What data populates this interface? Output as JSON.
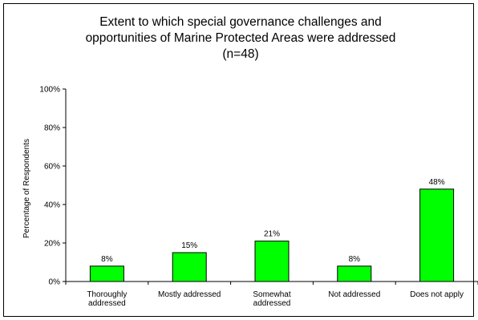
{
  "chart_data": {
    "type": "bar",
    "title_lines": [
      "Extent to which special governance challenges and",
      "opportunities of Marine Protected Areas were addressed",
      "(n=48)"
    ],
    "xlabel": "",
    "ylabel": "Percentage of Respondents",
    "categories": [
      [
        "Thoroughly",
        "addressed"
      ],
      [
        "Mostly addressed"
      ],
      [
        "Somewhat",
        "addressed"
      ],
      [
        "Not addressed"
      ],
      [
        "Does not apply"
      ]
    ],
    "values": [
      8,
      15,
      21,
      8,
      48
    ],
    "data_labels": [
      "8%",
      "15%",
      "21%",
      "8%",
      "48%"
    ],
    "ylim": [
      0,
      100
    ],
    "yticks": [
      0,
      20,
      40,
      60,
      80,
      100
    ],
    "ytick_labels": [
      "0%",
      "20%",
      "40%",
      "60%",
      "80%",
      "100%"
    ],
    "grid": false,
    "legend": "none",
    "colors": {
      "bar_fill": "#00ff00",
      "bar_stroke": "#000000",
      "axis": "#000000"
    }
  }
}
